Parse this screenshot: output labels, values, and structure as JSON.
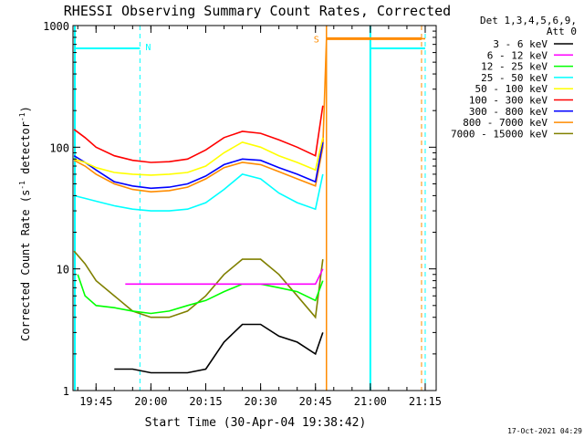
{
  "chart_data": {
    "type": "line",
    "title": "RHESSI Observing Summary Count Rates, Corrected",
    "xlabel": "Start Time (30-Apr-04 19:38:42)",
    "ylabel_parts": {
      "main": "Corrected Count Rate (s",
      "sup1": "-1",
      "mid": " detector",
      "sup2": "-1",
      "end": ")"
    },
    "yscale": "log",
    "ylim": [
      1,
      1000
    ],
    "xlim": [
      "19:38:42",
      "21:18"
    ],
    "x_ticks": [
      "19:45",
      "20:00",
      "20:15",
      "20:30",
      "20:45",
      "21:00",
      "21:15"
    ],
    "y_ticks": [
      "1",
      "10",
      "100",
      "1000"
    ],
    "legend_title": [
      "Det 1,3,4,5,6,9,",
      "Att 0"
    ],
    "series": [
      {
        "name": "3 - 6 keV",
        "color": "#000000",
        "x": [
          "19:50",
          "19:55",
          "20:00",
          "20:05",
          "20:10",
          "20:15",
          "20:20",
          "20:25",
          "20:30",
          "20:35",
          "20:40",
          "20:45",
          "20:47"
        ],
        "y": [
          1.5,
          1.5,
          1.4,
          1.4,
          1.4,
          1.5,
          2.5,
          3.5,
          3.5,
          2.8,
          2.5,
          2,
          3
        ]
      },
      {
        "name": "6 - 12 keV",
        "color": "#ff00ff",
        "x": [
          "19:53",
          "20:00",
          "20:05",
          "20:10",
          "20:15",
          "20:20",
          "20:25",
          "20:30",
          "20:35",
          "20:40",
          "20:45",
          "20:47"
        ],
        "y": [
          7.5,
          7.5,
          7.5,
          7.5,
          7.5,
          7.5,
          7.5,
          7.5,
          7.5,
          7.5,
          7.5,
          10
        ]
      },
      {
        "name": "12 - 25 keV",
        "color": "#00ff00",
        "x": [
          "19:40",
          "19:42",
          "19:45",
          "19:50",
          "19:55",
          "20:00",
          "20:05",
          "20:10",
          "20:15",
          "20:20",
          "20:25",
          "20:30",
          "20:35",
          "20:40",
          "20:45",
          "20:47"
        ],
        "y": [
          9,
          6,
          5,
          4.8,
          4.5,
          4.3,
          4.5,
          5,
          5.5,
          6.5,
          7.5,
          7.5,
          7,
          6.5,
          5.5,
          8
        ]
      },
      {
        "name": "25 - 50 keV",
        "color": "#00ffff",
        "x": [
          "19:39",
          "19:42",
          "19:45",
          "19:50",
          "19:55",
          "20:00",
          "20:05",
          "20:10",
          "20:15",
          "20:20",
          "20:25",
          "20:30",
          "20:35",
          "20:40",
          "20:45",
          "20:47"
        ],
        "y": [
          40,
          38,
          36,
          33,
          31,
          30,
          30,
          31,
          35,
          45,
          60,
          55,
          42,
          35,
          31,
          60
        ]
      },
      {
        "name": "50 - 100 keV",
        "color": "#ffff00",
        "x": [
          "19:39",
          "19:42",
          "19:45",
          "19:50",
          "19:55",
          "20:00",
          "20:05",
          "20:10",
          "20:15",
          "20:20",
          "20:25",
          "20:30",
          "20:35",
          "20:40",
          "20:45",
          "20:47"
        ],
        "y": [
          80,
          75,
          68,
          62,
          60,
          59,
          60,
          62,
          70,
          90,
          110,
          100,
          85,
          75,
          65,
          120
        ]
      },
      {
        "name": "100 - 300 keV",
        "color": "#ff0000",
        "x": [
          "19:39",
          "19:42",
          "19:45",
          "19:50",
          "19:55",
          "20:00",
          "20:05",
          "20:10",
          "20:15",
          "20:20",
          "20:25",
          "20:30",
          "20:35",
          "20:40",
          "20:45",
          "20:47"
        ],
        "y": [
          140,
          120,
          100,
          85,
          78,
          75,
          76,
          80,
          95,
          120,
          135,
          130,
          115,
          100,
          85,
          220
        ]
      },
      {
        "name": "300 - 800 keV",
        "color": "#0000ff",
        "x": [
          "19:39",
          "19:42",
          "19:45",
          "19:50",
          "19:55",
          "20:00",
          "20:05",
          "20:10",
          "20:15",
          "20:20",
          "20:25",
          "20:30",
          "20:35",
          "20:40",
          "20:45",
          "20:47"
        ],
        "y": [
          85,
          75,
          65,
          52,
          48,
          46,
          47,
          50,
          58,
          72,
          80,
          78,
          68,
          60,
          52,
          110
        ]
      },
      {
        "name": "800 - 7000 keV",
        "color": "#ff8c00",
        "x": [
          "19:39",
          "19:42",
          "19:45",
          "19:50",
          "19:55",
          "20:00",
          "20:05",
          "20:10",
          "20:15",
          "20:20",
          "20:25",
          "20:30",
          "20:35",
          "20:40",
          "20:45",
          "20:47",
          "20:48",
          "21:15"
        ],
        "y": [
          78,
          70,
          60,
          50,
          45,
          43,
          44,
          47,
          55,
          68,
          75,
          72,
          63,
          55,
          48,
          100,
          780,
          780
        ]
      },
      {
        "name": "7000 - 15000 keV",
        "color": "#808000",
        "x": [
          "19:39",
          "19:42",
          "19:45",
          "19:50",
          "19:55",
          "20:00",
          "20:05",
          "20:10",
          "20:15",
          "20:20",
          "20:25",
          "20:30",
          "20:35",
          "20:40",
          "20:45",
          "20:47"
        ],
        "y": [
          14,
          11,
          8,
          6,
          4.5,
          4,
          4,
          4.5,
          6,
          9,
          12,
          12,
          9,
          6,
          4,
          12
        ]
      }
    ],
    "flags": {
      "markers": [
        "N",
        "S"
      ],
      "cyan_level": 650,
      "orange_level": 780
    },
    "timestamp": "17-Oct-2021 04:29"
  },
  "colors": {
    "background": "#ffffff",
    "axis": "#000000",
    "cyan": "#00ffff",
    "orange": "#ff8c00"
  }
}
